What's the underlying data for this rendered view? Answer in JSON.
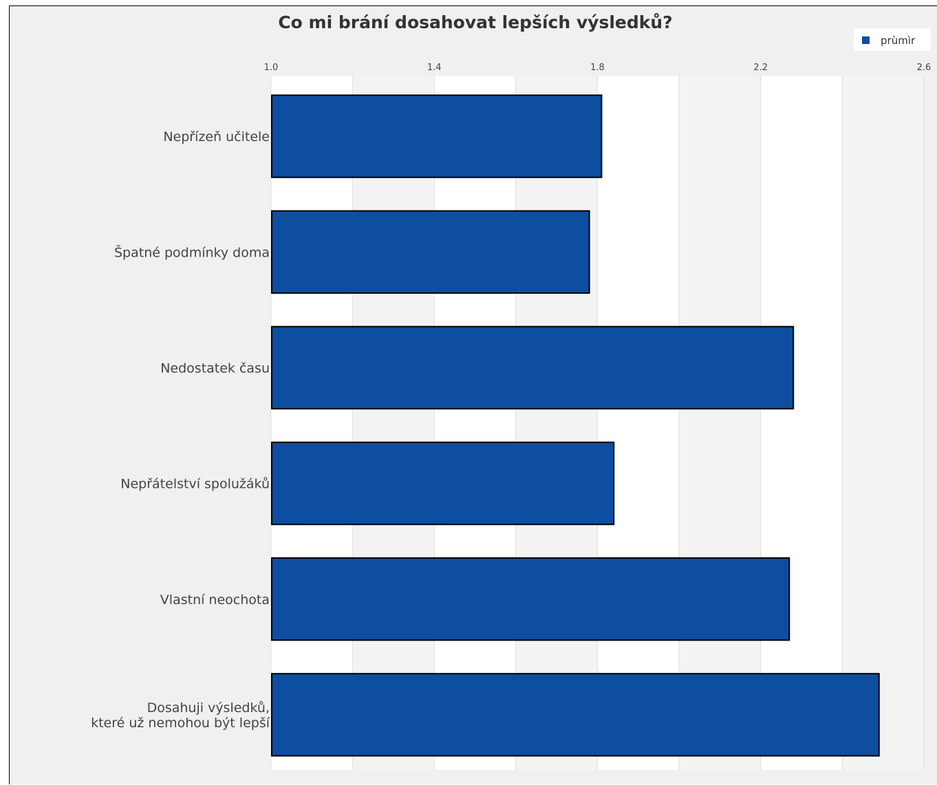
{
  "chart_data": {
    "type": "bar",
    "orientation": "horizontal",
    "title": "Co mi brání dosahovat lepších výsledků?",
    "categories": [
      [
        "Nepřízeň učitele"
      ],
      [
        "Špatné podmínky doma"
      ],
      [
        "Nedostatek času"
      ],
      [
        "Nepřátelství spolužáků"
      ],
      [
        "Vlastní neochota"
      ],
      [
        "Dosahuji výsledků,",
        "které už nemohou být lepší"
      ]
    ],
    "series": [
      {
        "name": "prùmìr",
        "values": [
          1.81,
          1.78,
          2.28,
          1.84,
          2.27,
          2.49
        ]
      }
    ],
    "xlim": [
      1.0,
      2.6
    ],
    "xticks": [
      1.0,
      1.4,
      1.8,
      2.2,
      2.6
    ],
    "xtick_labels": [
      "1.0",
      "1.4",
      "1.8",
      "2.2",
      "2.6"
    ],
    "grid": true,
    "legend_position": "top-right",
    "colors": {
      "bar": "#0d4ea1",
      "bar_edge": "#000000",
      "band_alt": "#f3f3f3",
      "band": "#ffffff",
      "background": "#f0f0f0"
    }
  }
}
